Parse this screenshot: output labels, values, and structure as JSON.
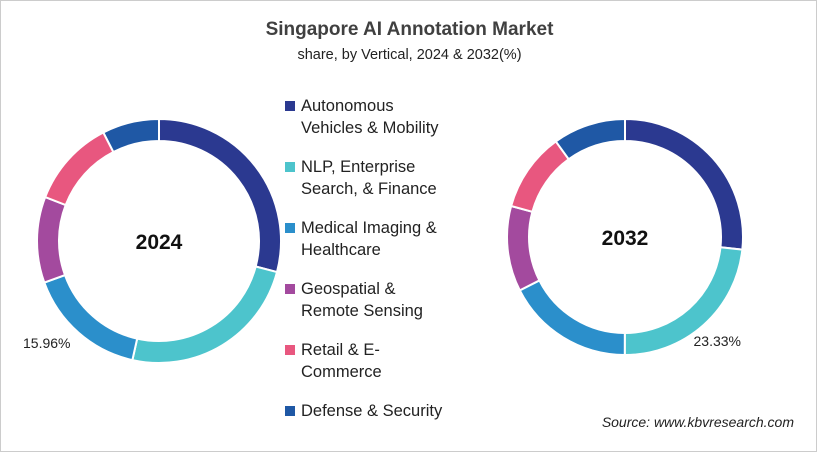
{
  "chart_data": {
    "type": "donut",
    "title": "Singapore AI Annotation Market",
    "subtitle": "share, by Vertical, 2024 & 2032(%)",
    "legend_placement": "center",
    "categories": [
      "Autonomous\nVehicles & Mobility",
      "NLP, Enterprise\nSearch, & Finance",
      "Medical Imaging &\nHealthcare",
      "Geospatial &\nRemote Sensing",
      "Retail & E-\nCommerce",
      "Defense & Security"
    ],
    "colors": [
      "#2b3990",
      "#4dc4cc",
      "#2b8fcb",
      "#a34a9e",
      "#e8577f",
      "#1f58a5"
    ],
    "charts": [
      {
        "label": "2024",
        "values": [
          29.1,
          24.4,
          15.96,
          11.4,
          11.6,
          7.54
        ],
        "annotation": "15.96%",
        "annotated_index": 2
      },
      {
        "label": "2032",
        "values": [
          26.7,
          23.33,
          17.5,
          11.7,
          10.8,
          9.97
        ],
        "annotation": "23.33%",
        "annotated_index": 1
      }
    ]
  },
  "source": "Source: www.kbvresearch.com"
}
